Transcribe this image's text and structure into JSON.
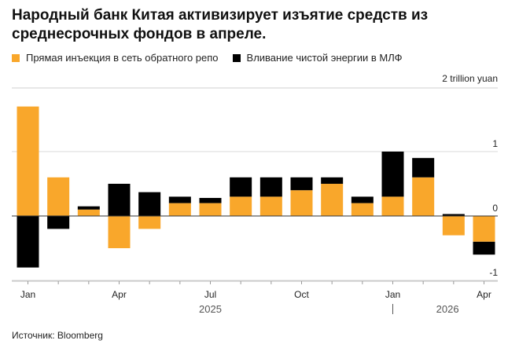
{
  "title": "Народный банк Китая активизирует изъятие средств из среднесрочных фондов в апреле.",
  "source": "Источник: Bloomberg",
  "colors": {
    "series1": "#f9a72b",
    "series2": "#000000",
    "grid": "#d9d9d9",
    "axis": "#666666"
  },
  "chart_data": {
    "type": "bar",
    "stacked": true,
    "unit_label": "2 trillion yuan",
    "ylim": [
      -1,
      2
    ],
    "yticks": [
      "1",
      "0",
      "-1"
    ],
    "categories": [
      "Jan 2025",
      "Feb 2025",
      "Mar 2025",
      "Apr 2025",
      "May 2025",
      "Jun 2025",
      "Jul 2025",
      "Aug 2025",
      "Sep 2025",
      "Oct 2025",
      "Nov 2025",
      "Dec 2025",
      "Jan 2026",
      "Feb 2026",
      "Mar 2026",
      "Apr 2026"
    ],
    "series": [
      {
        "name": "Прямая инъекция в сеть обратного репо",
        "values": [
          1.7,
          0.6,
          0.1,
          -0.5,
          -0.2,
          0.2,
          0.2,
          0.3,
          0.3,
          0.4,
          0.5,
          0.2,
          0.3,
          0.6,
          -0.3,
          -0.4
        ]
      },
      {
        "name": "Вливание чистой энергии в МЛФ",
        "values": [
          -0.8,
          -0.2,
          0.05,
          0.5,
          0.37,
          0.1,
          0.08,
          0.3,
          0.3,
          0.2,
          0.1,
          0.1,
          0.7,
          0.3,
          0.03,
          -0.2
        ]
      }
    ],
    "x_tick_labels": [
      {
        "label": "Jan",
        "index": 0
      },
      {
        "label": "Apr",
        "index": 3
      },
      {
        "label": "Jul",
        "index": 6
      },
      {
        "label": "Oct",
        "index": 9
      },
      {
        "label": "Jan",
        "index": 12
      },
      {
        "label": "Apr",
        "index": 15
      }
    ],
    "year_labels": [
      {
        "label": "2025",
        "index": 6
      },
      {
        "label": "2026",
        "index": 13.8
      }
    ]
  }
}
